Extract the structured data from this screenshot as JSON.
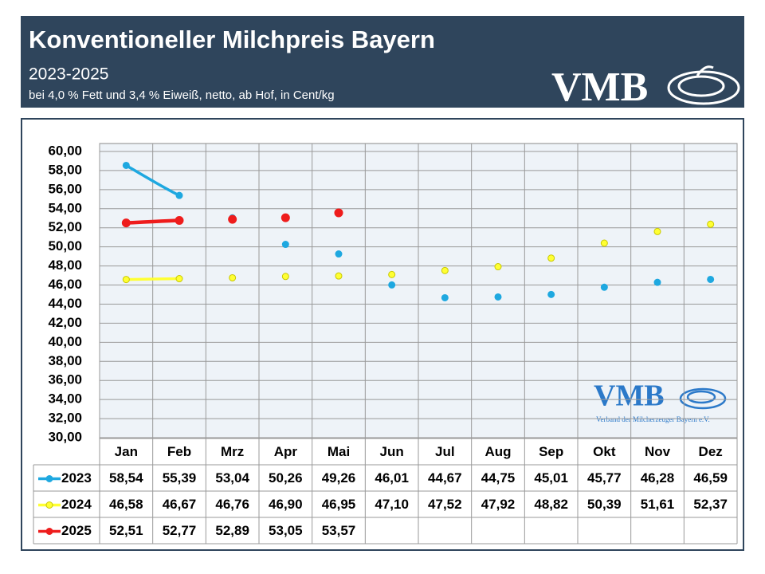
{
  "header": {
    "title": "Konventioneller Milchpreis Bayern",
    "subtitle": "2023-2025",
    "note": "bei 4,0 % Fett und 3,4 % Eiweiß, netto, ab Hof, in Cent/kg",
    "logo": "VMB"
  },
  "watermark": {
    "logo": "VMB",
    "text": "Verband der Milcherzeuger Bayern e.V."
  },
  "chart_data": {
    "type": "line",
    "categories": [
      "Jan",
      "Feb",
      "Mrz",
      "Apr",
      "Mai",
      "Jun",
      "Jul",
      "Aug",
      "Sep",
      "Okt",
      "Nov",
      "Dez"
    ],
    "series": [
      {
        "name": "2023",
        "color": "#1ea8e0",
        "values": [
          58.54,
          55.39,
          53.04,
          50.26,
          49.26,
          46.01,
          44.67,
          44.75,
          45.01,
          45.77,
          46.28,
          46.59
        ],
        "value_labels": [
          "58,54",
          "55,39",
          "53,04",
          "50,26",
          "49,26",
          "46,01",
          "44,67",
          "44,75",
          "45,01",
          "45,77",
          "46,28",
          "46,59"
        ]
      },
      {
        "name": "2024",
        "color": "#ffff33",
        "values": [
          46.58,
          46.67,
          46.76,
          46.9,
          46.95,
          47.1,
          47.52,
          47.92,
          48.82,
          50.39,
          51.61,
          52.37
        ],
        "value_labels": [
          "46,58",
          "46,67",
          "46,76",
          "46,90",
          "46,95",
          "47,10",
          "47,52",
          "47,92",
          "48,82",
          "50,39",
          "51,61",
          "52,37"
        ]
      },
      {
        "name": "2025",
        "color": "#ee1c1c",
        "values": [
          52.51,
          52.77,
          52.89,
          53.05,
          53.57,
          null,
          null,
          null,
          null,
          null,
          null,
          null
        ],
        "value_labels": [
          "52,51",
          "52,77",
          "52,89",
          "53,05",
          "53,57",
          null,
          null,
          null,
          null,
          null,
          null,
          null
        ]
      }
    ],
    "ylim": [
      30,
      60
    ],
    "yticks": [
      {
        "value": 30,
        "label": "30,00"
      },
      {
        "value": 32,
        "label": "32,00"
      },
      {
        "value": 34,
        "label": "34,00"
      },
      {
        "value": 36,
        "label": "36,00"
      },
      {
        "value": 38,
        "label": "38,00"
      },
      {
        "value": 40,
        "label": "40,00"
      },
      {
        "value": 42,
        "label": "42,00"
      },
      {
        "value": 44,
        "label": "44,00"
      },
      {
        "value": 46,
        "label": "46,00"
      },
      {
        "value": 48,
        "label": "48,00"
      },
      {
        "value": 50,
        "label": "50,00"
      },
      {
        "value": 52,
        "label": "52,00"
      },
      {
        "value": 54,
        "label": "54,00"
      },
      {
        "value": 56,
        "label": "56,00"
      },
      {
        "value": 58,
        "label": "58,00"
      },
      {
        "value": 60,
        "label": "60,00"
      }
    ],
    "grid": true
  }
}
